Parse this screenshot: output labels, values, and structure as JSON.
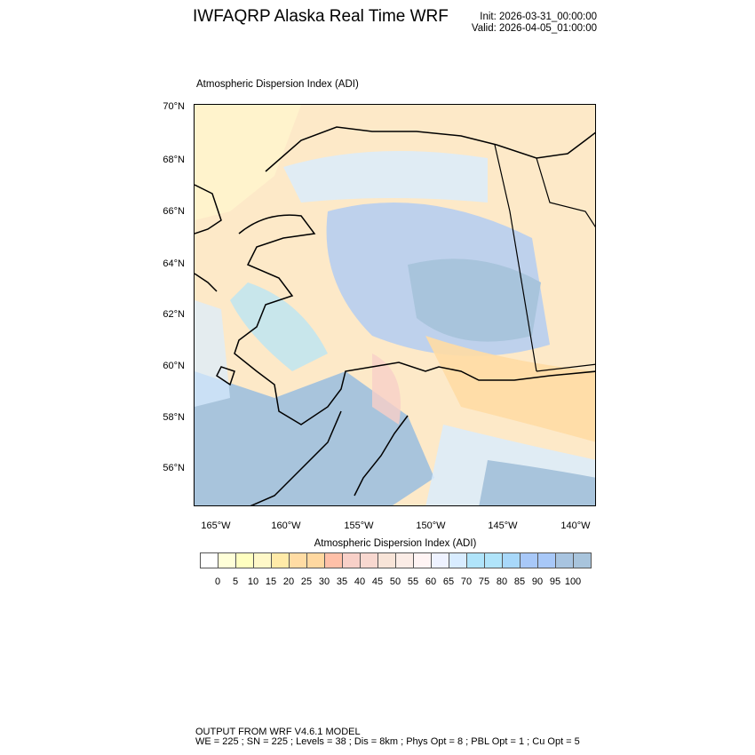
{
  "header": {
    "title": "IWFAQRP Alaska Real Time WRF",
    "init": "Init: 2026-03-31_00:00:00",
    "valid": "Valid: 2026-04-05_01:00:00"
  },
  "field_title": "Atmospheric Dispersion Index   (ADI)",
  "map": {
    "lat_labels": [
      "70°N",
      "68°N",
      "66°N",
      "64°N",
      "62°N",
      "60°N",
      "58°N",
      "56°N"
    ],
    "lon_labels": [
      "165°W",
      "160°W",
      "155°W",
      "150°W",
      "145°W",
      "140°W"
    ],
    "land_color": "#fde9c8",
    "ocean_color": "#a8c4dc",
    "coast_color": "#000000"
  },
  "colorbar": {
    "title": "Atmospheric Dispersion Index  (ADI)",
    "labels": [
      "0",
      "5",
      "10",
      "15",
      "20",
      "25",
      "30",
      "35",
      "40",
      "45",
      "50",
      "55",
      "60",
      "65",
      "70",
      "75",
      "80",
      "85",
      "90",
      "95",
      "100"
    ],
    "colors": [
      "#ffffff",
      "#ffffd8",
      "#ffffc0",
      "#fff8c8",
      "#ffeaa8",
      "#ffdca4",
      "#ffd8a0",
      "#ffc0a8",
      "#f8d0c8",
      "#f8d8d0",
      "#f8e4d8",
      "#fbece6",
      "#fff4f4",
      "#eef2ff",
      "#d8ecff",
      "#b0e4fa",
      "#b0e4fa",
      "#a8d8fa",
      "#a8c8f8",
      "#a8c8f8",
      "#a8c4e0",
      "#a8c4dc"
    ]
  },
  "footer": {
    "line1": "OUTPUT FROM WRF V4.6.1 MODEL",
    "line2": "WE = 225 ; SN = 225 ; Levels = 38 ; Dis = 8km ; Phys Opt = 8 ; PBL Opt = 1 ; Cu Opt = 5"
  }
}
